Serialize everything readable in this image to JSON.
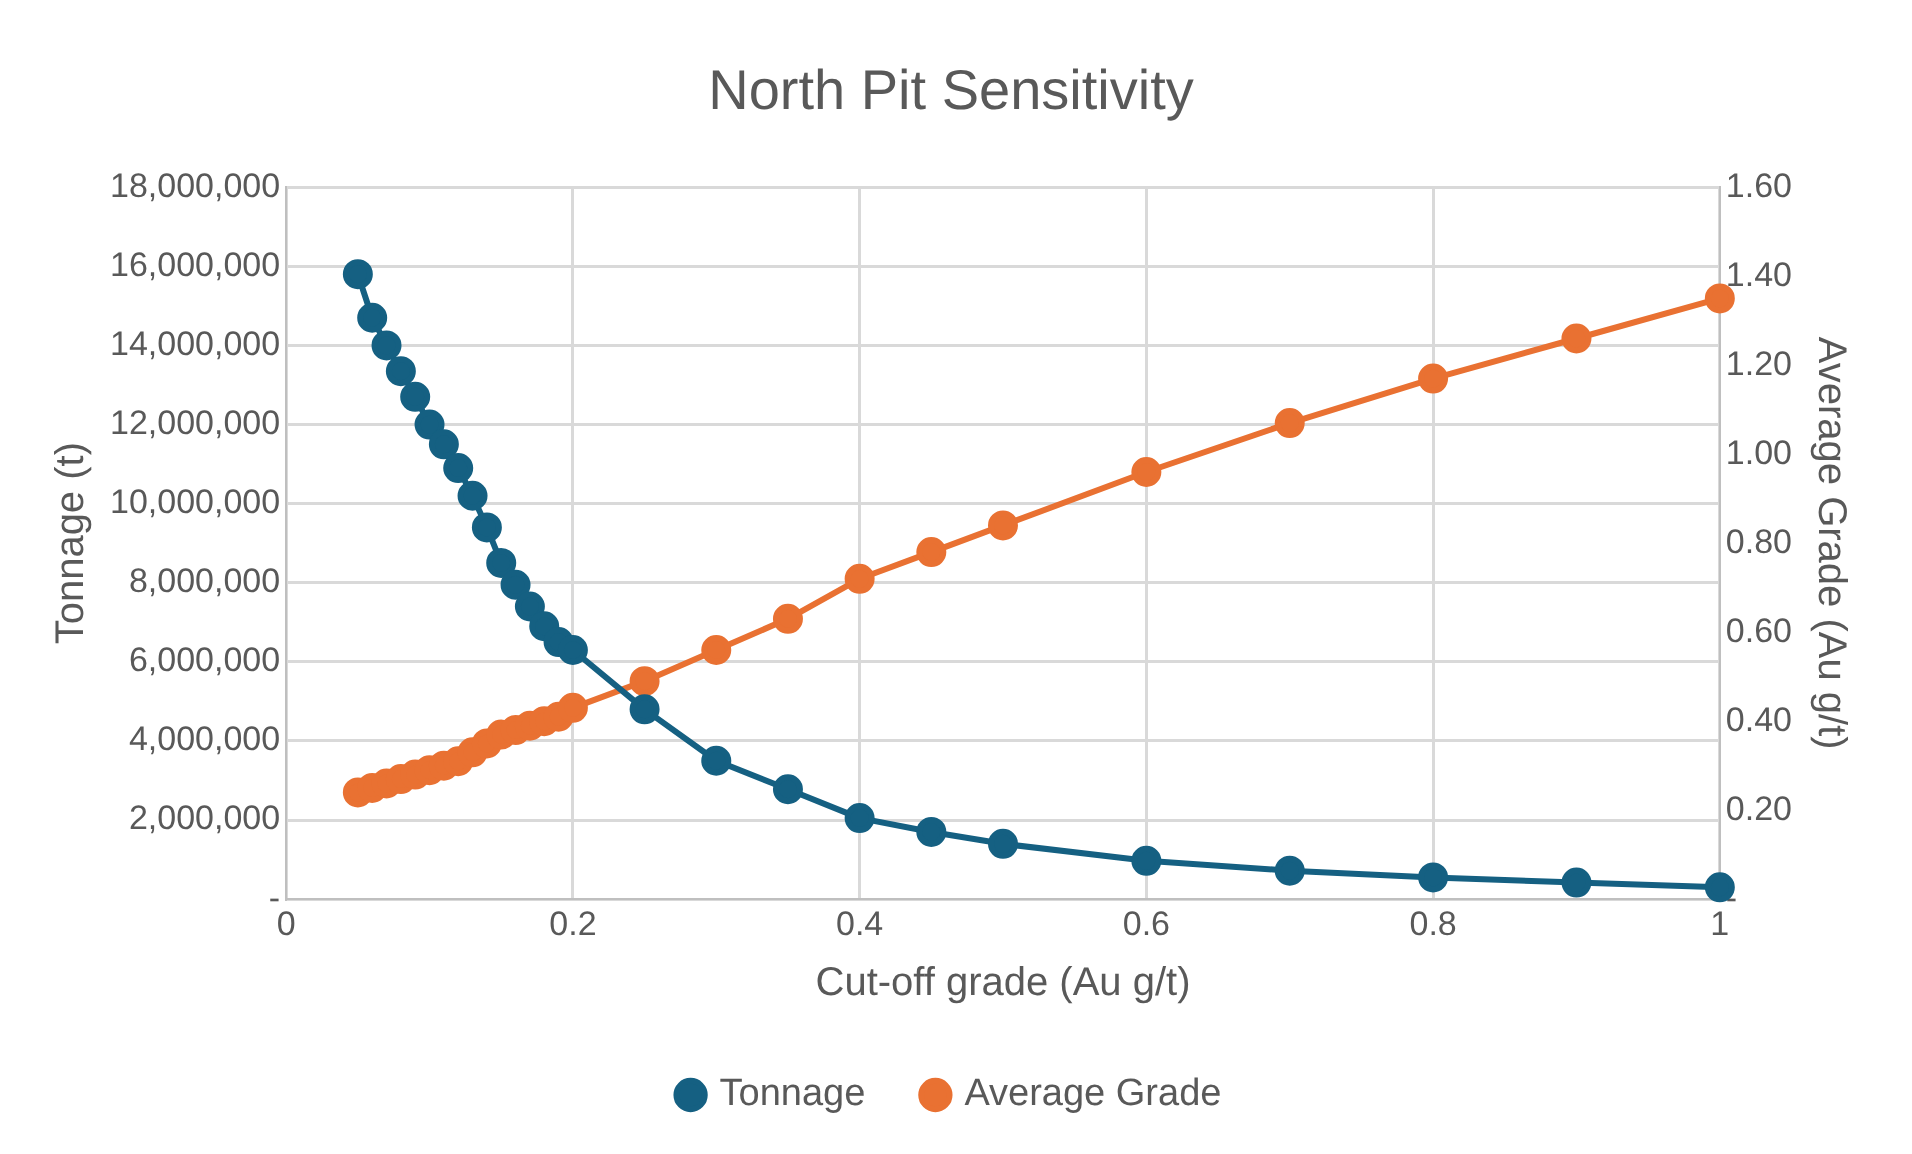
{
  "chart_data": {
    "type": "line",
    "title": "North Pit Sensitivity",
    "xlabel": "Cut-off grade (Au g/t)",
    "ylabel": "Tonnage (t)",
    "y2label": "Average Grade (Au g/t)",
    "x": [
      0.05,
      0.06,
      0.07,
      0.08,
      0.09,
      0.1,
      0.11,
      0.12,
      0.13,
      0.14,
      0.15,
      0.16,
      0.17,
      0.18,
      0.19,
      0.2,
      0.25,
      0.3,
      0.35,
      0.4,
      0.45,
      0.5,
      0.6,
      0.7,
      0.8,
      0.9,
      1.0
    ],
    "series": [
      {
        "name": "Tonnage",
        "color": "#156082",
        "values": [
          15800000,
          14700000,
          14000000,
          13350000,
          12700000,
          12000000,
          11500000,
          10900000,
          10200000,
          9400000,
          8500000,
          7950000,
          7400000,
          6900000,
          6500000,
          6300000,
          4800000,
          3500000,
          2780000,
          2050000,
          1700000,
          1400000,
          970000,
          720000,
          550000,
          420000,
          300000
        ]
      },
      {
        "name": "Average Grade",
        "color": "#e97132",
        "axis": "y2",
        "values": [
          0.24,
          0.25,
          0.26,
          0.27,
          0.28,
          0.29,
          0.3,
          0.31,
          0.33,
          0.35,
          0.37,
          0.38,
          0.39,
          0.4,
          0.41,
          0.43,
          0.49,
          0.56,
          0.63,
          0.72,
          0.78,
          0.84,
          0.96,
          1.07,
          1.17,
          1.26,
          1.35
        ]
      }
    ],
    "xlim": [
      0,
      1
    ],
    "xticks": [
      0,
      0.2,
      0.4,
      0.6,
      0.8,
      1
    ],
    "ylim": [
      0,
      18000000
    ],
    "yticks": [
      {
        "value": 0,
        "label": "-"
      },
      {
        "value": 2000000,
        "label": "2,000,000"
      },
      {
        "value": 4000000,
        "label": "4,000,000"
      },
      {
        "value": 6000000,
        "label": "6,000,000"
      },
      {
        "value": 8000000,
        "label": "8,000,000"
      },
      {
        "value": 10000000,
        "label": "10,000,000"
      },
      {
        "value": 12000000,
        "label": "12,000,000"
      },
      {
        "value": 14000000,
        "label": "14,000,000"
      },
      {
        "value": 16000000,
        "label": "16,000,000"
      },
      {
        "value": 18000000,
        "label": "18,000,000"
      }
    ],
    "y2lim": [
      0,
      1.6
    ],
    "y2ticks": [
      {
        "value": 0,
        "label": "-"
      },
      {
        "value": 0.2,
        "label": "0.20"
      },
      {
        "value": 0.4,
        "label": "0.40"
      },
      {
        "value": 0.6,
        "label": "0.60"
      },
      {
        "value": 0.8,
        "label": "0.80"
      },
      {
        "value": 1.0,
        "label": "1.00"
      },
      {
        "value": 1.2,
        "label": "1.20"
      },
      {
        "value": 1.4,
        "label": "1.40"
      },
      {
        "value": 1.6,
        "label": "1.60"
      }
    ],
    "grid": true,
    "legend": "bottom",
    "marker": "circle",
    "line_style": "solid"
  }
}
